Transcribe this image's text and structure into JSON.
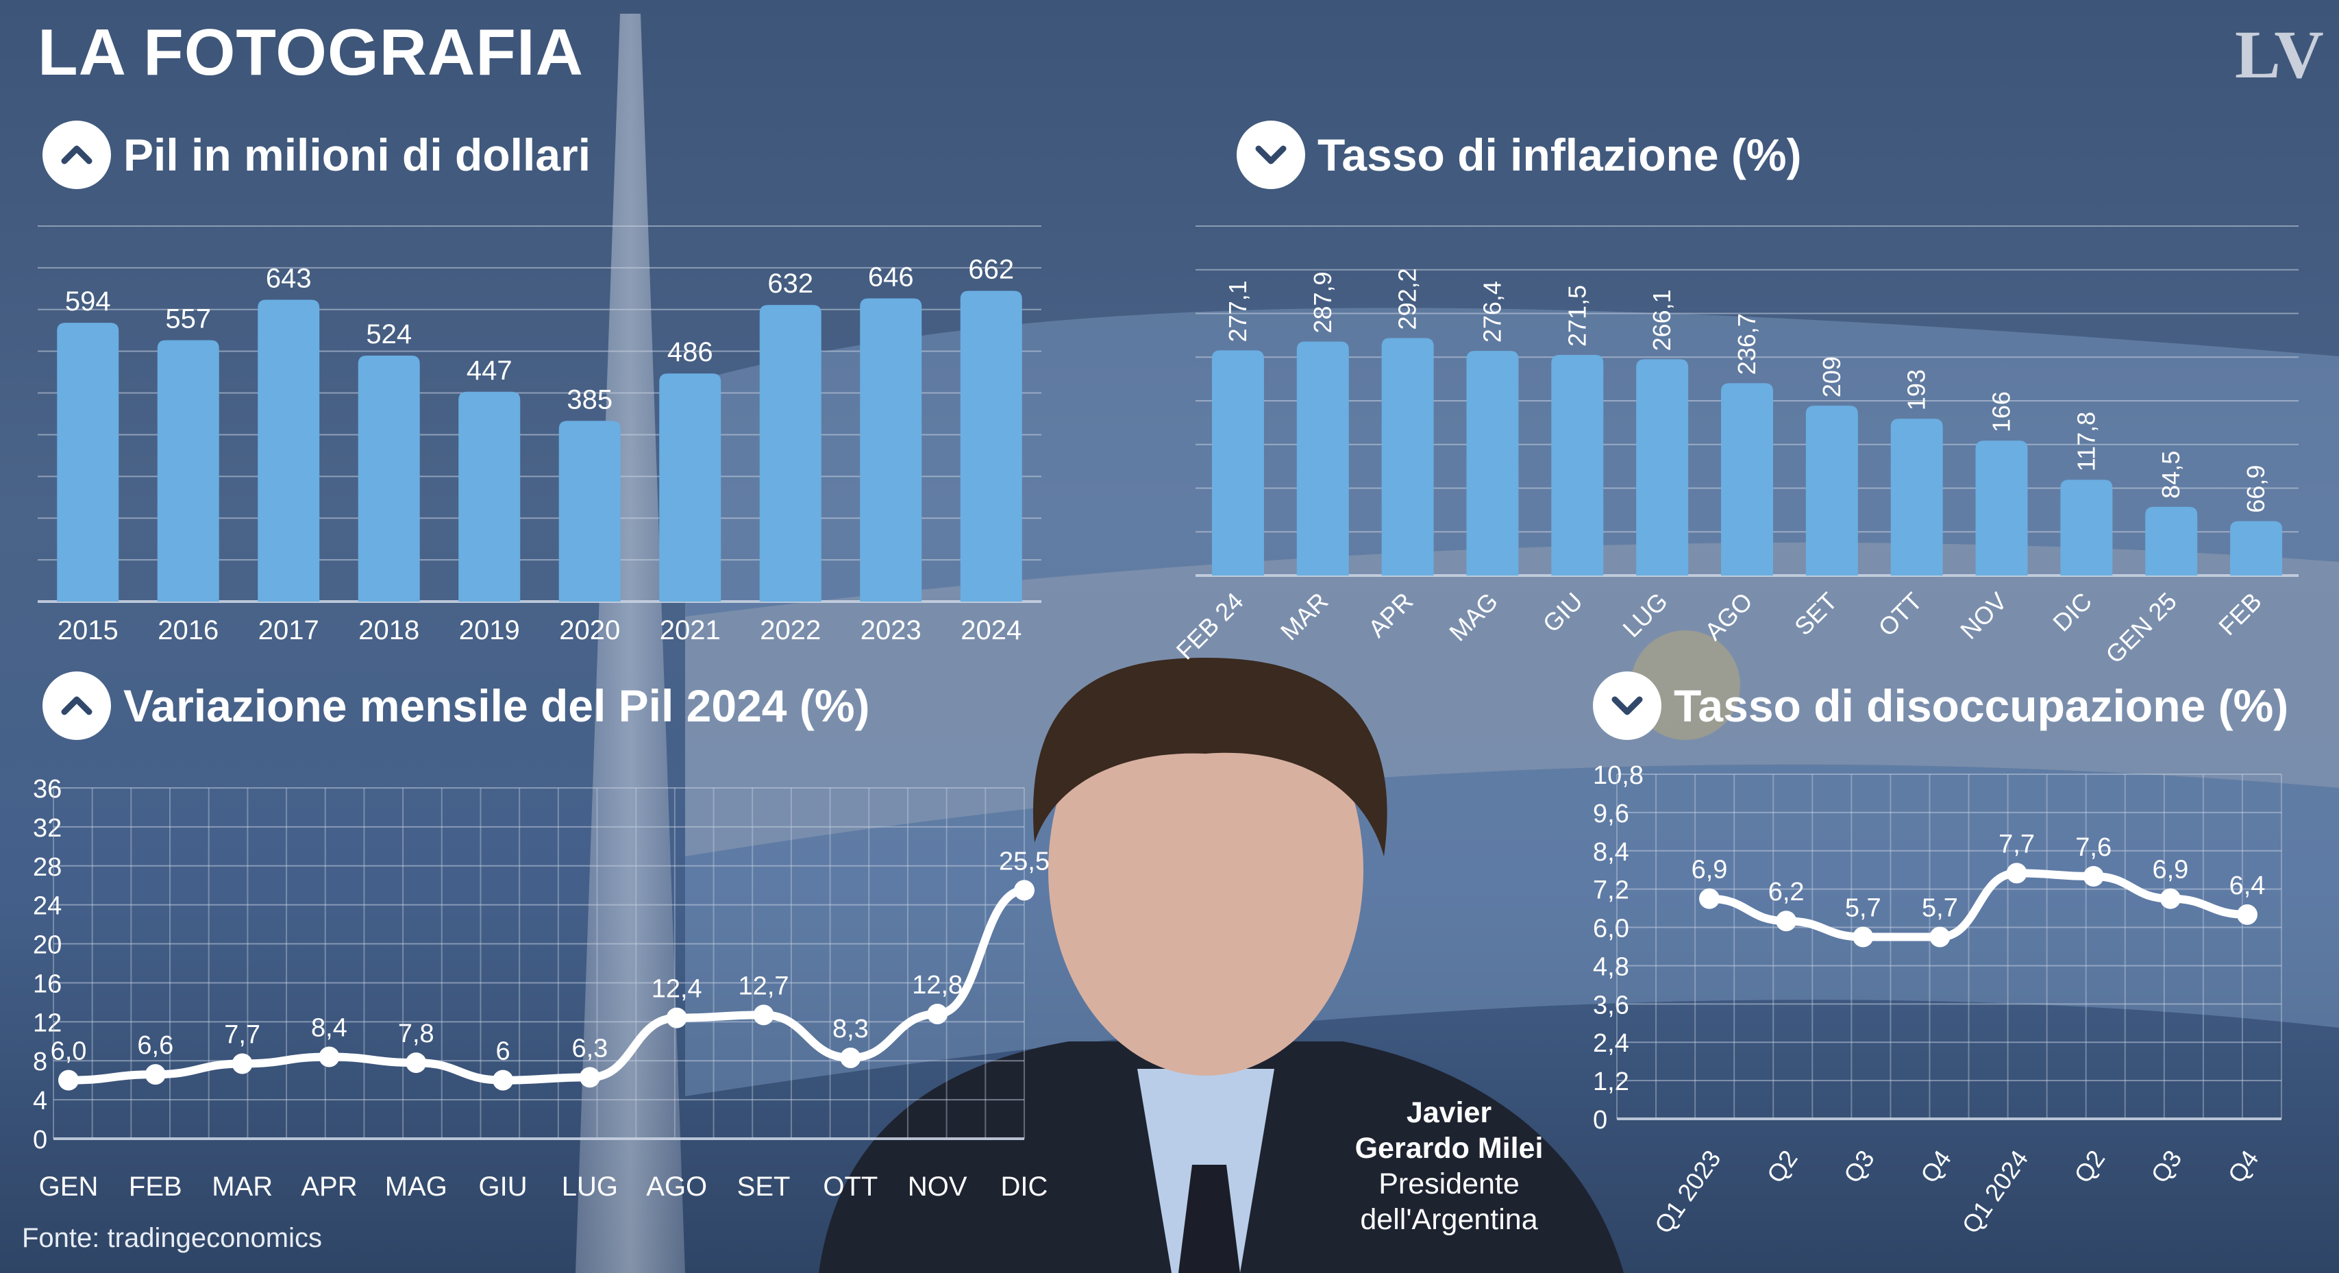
{
  "title": "LA FOTOGRAFIA",
  "logo": "LV",
  "source": "Fonte: tradingeconomics",
  "person": {
    "name_line1": "Javier",
    "name_line2": "Gerardo Milei",
    "role_line1": "Presidente",
    "role_line2": "dell'Argentina"
  },
  "icons": {
    "up": "chevron-up-icon",
    "down": "chevron-down-icon"
  },
  "colors": {
    "bar": "#6aaee2",
    "line": "#ffffff",
    "text": "#ffffff",
    "grid": "#c8d2e2"
  },
  "chart_data": [
    {
      "id": "gdp",
      "type": "bar",
      "title": "Pil in milioni di dollari",
      "icon": "chevron-up-icon",
      "categories": [
        "2015",
        "2016",
        "2017",
        "2018",
        "2019",
        "2020",
        "2021",
        "2022",
        "2023",
        "2024"
      ],
      "values": [
        594,
        557,
        643,
        524,
        447,
        385,
        486,
        632,
        646,
        662
      ],
      "value_labels": [
        "594",
        "557",
        "643",
        "524",
        "447",
        "385",
        "486",
        "632",
        "646",
        "662"
      ],
      "ylim": [
        0,
        800
      ],
      "grid": true
    },
    {
      "id": "inflation",
      "type": "bar",
      "title": "Tasso di inflazione  (%)",
      "icon": "chevron-down-icon",
      "categories": [
        "FEB 24",
        "MAR",
        "APR",
        "MAG",
        "GIU",
        "LUG",
        "AGO",
        "SET",
        "OTT",
        "NOV",
        "DIC",
        "GEN 25",
        "FEB"
      ],
      "values": [
        277.1,
        287.9,
        292.2,
        276.4,
        271.5,
        266.1,
        236.7,
        209,
        193,
        166,
        117.8,
        84.5,
        66.9
      ],
      "value_labels": [
        "277,1",
        "287,9",
        "292,2",
        "276,4",
        "271,5",
        "266,1",
        "236,7",
        "209",
        "193",
        "166",
        "117,8",
        "84,5",
        "66,9"
      ],
      "ylim": [
        0,
        430
      ],
      "grid": true
    },
    {
      "id": "gdp_monthly",
      "type": "line",
      "title": "Variazione mensile del Pil 2024 (%)",
      "icon": "chevron-up-icon",
      "categories": [
        "GEN",
        "FEB",
        "MAR",
        "APR",
        "MAG",
        "GIU",
        "LUG",
        "AGO",
        "SET",
        "OTT",
        "NOV",
        "DIC"
      ],
      "values": [
        6.0,
        6.6,
        7.7,
        8.4,
        7.8,
        6,
        6.3,
        12.4,
        12.7,
        8.3,
        12.8,
        25.5
      ],
      "value_labels": [
        "6,0",
        "6,6",
        "7,7",
        "8,4",
        "7,8",
        "6",
        "6,3",
        "12,4",
        "12,7",
        "8,3",
        "12,8",
        "25,5"
      ],
      "yticks": [
        "36",
        "32",
        "28",
        "24",
        "20",
        "16",
        "12",
        "8",
        "4",
        "0"
      ],
      "ylim": [
        0,
        36
      ],
      "grid": true
    },
    {
      "id": "unemployment",
      "type": "line",
      "title": "Tasso di disoccupazione (%)",
      "icon": "chevron-down-icon",
      "categories": [
        "Q1 2023",
        "Q2",
        "Q3",
        "Q4",
        "Q1 2024",
        "Q2",
        "Q3",
        "Q4"
      ],
      "values": [
        6.9,
        6.2,
        5.7,
        5.7,
        7.7,
        7.6,
        6.9,
        6.4
      ],
      "value_labels": [
        "6,9",
        "6,2",
        "5,7",
        "5,7",
        "7,7",
        "7,6",
        "6,9",
        "6,4"
      ],
      "yticks": [
        "10,8",
        "9,6",
        "8,4",
        "7,2",
        "6,0",
        "4,8",
        "3,6",
        "2,4",
        "1,2",
        "0"
      ],
      "ylim": [
        0,
        10.8
      ],
      "grid": true
    }
  ]
}
